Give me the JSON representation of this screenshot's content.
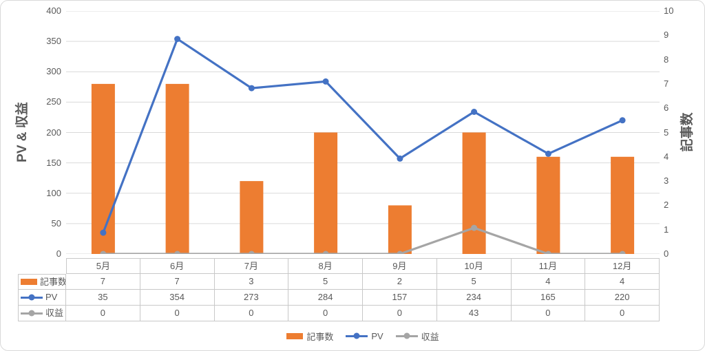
{
  "chart_data": {
    "type": "combo",
    "categories": [
      "5月",
      "6月",
      "7月",
      "8月",
      "9月",
      "10月",
      "11月",
      "12月"
    ],
    "series": [
      {
        "name": "記事数",
        "type": "bar",
        "axis": "right",
        "color": "#ED7D31",
        "values": [
          7,
          7,
          3,
          5,
          2,
          5,
          4,
          4
        ]
      },
      {
        "name": "PV",
        "type": "line",
        "axis": "left",
        "color": "#4472C4",
        "values": [
          35,
          354,
          273,
          284,
          157,
          234,
          165,
          220
        ]
      },
      {
        "name": "収益",
        "type": "line",
        "axis": "left",
        "color": "#A5A5A5",
        "values": [
          0,
          0,
          0,
          0,
          0,
          43,
          0,
          0
        ]
      }
    ],
    "left_axis": {
      "title": "PV & 収益",
      "min": 0,
      "max": 400,
      "step": 50
    },
    "right_axis": {
      "title": "記事数",
      "min": 0,
      "max": 10,
      "step": 1
    },
    "grid": "horizontal",
    "legend_position": "bottom",
    "data_table_visible": true
  },
  "colors": {
    "bar": "#ED7D31",
    "pv_line": "#4472C4",
    "revenue_line": "#A5A5A5",
    "gridline": "#D9D9D9",
    "text": "#595959",
    "table_border": "#C8C8C8"
  }
}
